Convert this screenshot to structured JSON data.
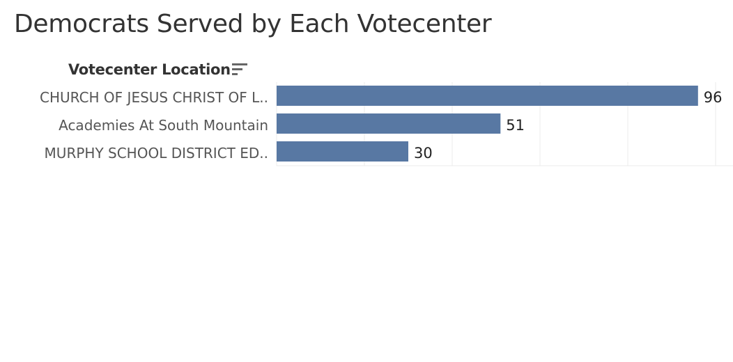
{
  "title": "Democrats Served by Each Votecenter",
  "column_header": "Votecenter Location",
  "icons": {
    "sort": "sort-descending-icon"
  },
  "colors": {
    "bar": "#5878a3",
    "gridline": "#ebebeb"
  },
  "chart_data": {
    "type": "bar",
    "orientation": "horizontal",
    "categories": [
      "CHURCH OF JESUS CHRIST OF L..",
      "Academies At South Mountain",
      "MURPHY SCHOOL DISTRICT ED.."
    ],
    "values": [
      96,
      51,
      30
    ],
    "xlim": [
      0,
      100
    ],
    "grid": true,
    "data_labels": true,
    "legend": "none"
  }
}
